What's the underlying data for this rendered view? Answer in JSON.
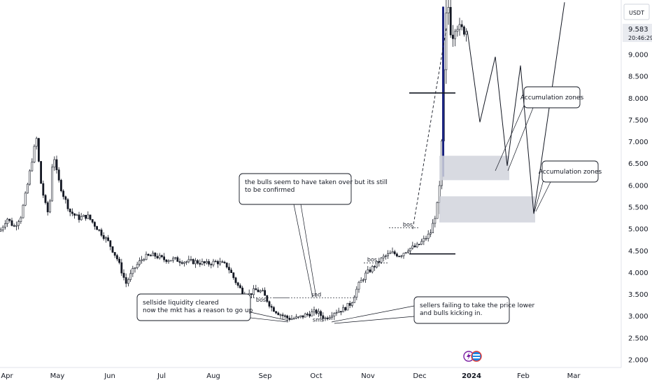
{
  "chart_data": {
    "type": "candlestick",
    "currency_label": "USDT",
    "y_ticks": [
      "9.000",
      "8.500",
      "8.000",
      "7.500",
      "7.000",
      "6.500",
      "6.000",
      "5.500",
      "5.000",
      "4.500",
      "4.000",
      "3.500",
      "3.000",
      "2.500",
      "2.000"
    ],
    "ylim": [
      1.85,
      10.25
    ],
    "x_ticks": [
      "Apr",
      "May",
      "Jun",
      "Jul",
      "Aug",
      "Sep",
      "Oct",
      "Nov",
      "Dec",
      "2024",
      "Feb",
      "Mar"
    ],
    "last_price": "9.583",
    "countdown": "20:46:29",
    "candles_anchor": [
      [
        0,
        4.95
      ],
      [
        10,
        5.25
      ],
      [
        20,
        5.05
      ],
      [
        30,
        5.3
      ],
      [
        38,
        5.9
      ],
      [
        46,
        6.6
      ],
      [
        52,
        7.1
      ],
      [
        58,
        6.1
      ],
      [
        64,
        5.6
      ],
      [
        70,
        5.3
      ],
      [
        76,
        6.8
      ],
      [
        82,
        6.2
      ],
      [
        90,
        5.8
      ],
      [
        100,
        5.4
      ],
      [
        112,
        5.25
      ],
      [
        125,
        5.3
      ],
      [
        140,
        5.0
      ],
      [
        155,
        4.7
      ],
      [
        168,
        4.3
      ],
      [
        180,
        3.75
      ],
      [
        192,
        4.1
      ],
      [
        205,
        4.35
      ],
      [
        220,
        4.4
      ],
      [
        235,
        4.3
      ],
      [
        250,
        4.3
      ],
      [
        265,
        4.25
      ],
      [
        280,
        4.25
      ],
      [
        295,
        4.2
      ],
      [
        310,
        4.25
      ],
      [
        325,
        4.15
      ],
      [
        340,
        3.7
      ],
      [
        352,
        3.45
      ],
      [
        365,
        3.6
      ],
      [
        375,
        3.55
      ],
      [
        388,
        3.2
      ],
      [
        400,
        3.05
      ],
      [
        412,
        2.95
      ],
      [
        425,
        2.95
      ],
      [
        440,
        3.05
      ],
      [
        452,
        3.1
      ],
      [
        465,
        2.95
      ],
      [
        478,
        3.1
      ],
      [
        490,
        3.15
      ],
      [
        502,
        3.3
      ],
      [
        512,
        3.7
      ],
      [
        522,
        3.95
      ],
      [
        535,
        4.15
      ],
      [
        548,
        4.35
      ],
      [
        560,
        4.45
      ],
      [
        572,
        4.4
      ],
      [
        584,
        4.55
      ],
      [
        596,
        4.6
      ],
      [
        606,
        4.75
      ],
      [
        615,
        4.9
      ],
      [
        622,
        5.3
      ],
      [
        628,
        5.8
      ],
      [
        631,
        6.6
      ],
      [
        634,
        8.2
      ],
      [
        637,
        9.7
      ],
      [
        641,
        10.1
      ],
      [
        646,
        9.4
      ],
      [
        652,
        9.8
      ],
      [
        658,
        9.5
      ],
      [
        663,
        9.6
      ],
      [
        668,
        9.55
      ]
    ],
    "series": [
      {
        "name": "",
        "type": "projection",
        "points": [
          [
            668,
            9.55
          ],
          [
            686,
            7.45
          ],
          [
            708,
            8.95
          ],
          [
            725,
            6.45
          ],
          [
            744,
            8.75
          ],
          [
            763,
            5.35
          ],
          [
            807,
            10.2
          ]
        ]
      }
    ],
    "zones": [
      {
        "y_top": 6.68,
        "y_bottom": 6.12
      },
      {
        "y_top": 5.75,
        "y_bottom": 5.15
      }
    ],
    "levels": [
      {
        "y": 8.12,
        "style": "solid"
      },
      {
        "y": 4.43,
        "style": "solid"
      }
    ],
    "markers": [
      {
        "text": "bos",
        "x": 373,
        "y": 3.3
      },
      {
        "text": "snd",
        "x": 452,
        "y": 3.42
      },
      {
        "text": "sms",
        "x": 455,
        "y": 2.84
      },
      {
        "text": "bos",
        "x": 532,
        "y": 4.22
      },
      {
        "text": "bos",
        "x": 583,
        "y": 5.03
      }
    ],
    "annotations": [
      {
        "text": [
          "the bulls seem to have taken over but its still",
          "to be confirmed"
        ]
      },
      {
        "text": [
          "sellside liquidity cleared",
          "now the mkt has a reason to go up"
        ]
      },
      {
        "text": [
          "sellers failing to take the price lower",
          "and bulls kicking in."
        ]
      },
      {
        "text": [
          "Accumulation zones"
        ]
      },
      {
        "text": [
          "Accumulation zones"
        ]
      }
    ],
    "grid": false
  }
}
